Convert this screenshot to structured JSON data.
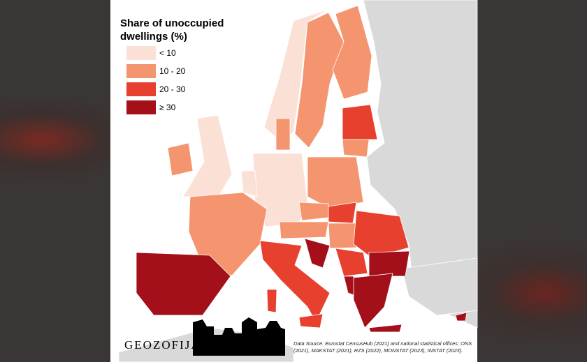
{
  "title": "Share of unoccupied dwellings (%)",
  "legend": [
    {
      "label": "< 10",
      "color": "#fbe0d6"
    },
    {
      "label": "10 - 20",
      "color": "#f4956f"
    },
    {
      "label": "20 - 30",
      "color": "#e8402e"
    },
    {
      "label": "≥ 30",
      "color": "#a3101a"
    }
  ],
  "logo": "GEOZOFIJA",
  "source": "Data Source: Eurostat CensusHub (2021) and national statistical offices: ONS (2021), MAKSTAT (2021), RZS (2022), MONSTAT (2023), INSTAT (2023)."
}
